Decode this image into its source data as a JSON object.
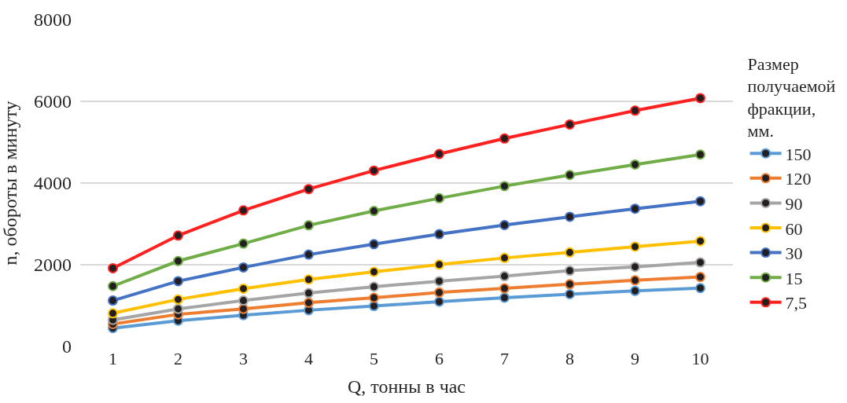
{
  "chart_data": {
    "type": "line",
    "xlabel": "Q, тонны в час",
    "ylabel": "n, обороты в минуту",
    "legend_title": "Размер получаемой фракции, мм.",
    "categories": [
      "1",
      "2",
      "3",
      "4",
      "5",
      "6",
      "7",
      "8",
      "9",
      "10"
    ],
    "ylim": [
      0,
      8000
    ],
    "yticks": [
      0,
      2000,
      4000,
      6000,
      8000
    ],
    "grid": "y",
    "legend": "right",
    "marker": "circle",
    "line_style": "solid",
    "series": [
      {
        "name": "150",
        "color": "#5b9bd5",
        "values": [
          447,
          630,
          765,
          887,
          989,
          1096,
          1192,
          1279,
          1360,
          1428
        ]
      },
      {
        "name": "120",
        "color": "#ed7d31",
        "values": [
          548,
          786,
          920,
          1070,
          1192,
          1320,
          1421,
          1523,
          1618,
          1700
        ]
      },
      {
        "name": "90",
        "color": "#a5a5a5",
        "values": [
          650,
          920,
          1123,
          1306,
          1462,
          1598,
          1720,
          1854,
          1949,
          2057
        ]
      },
      {
        "name": "60",
        "color": "#ffc000",
        "values": [
          812,
          1151,
          1415,
          1639,
          1827,
          2004,
          2166,
          2301,
          2443,
          2579
        ]
      },
      {
        "name": "30",
        "color": "#4472c4",
        "values": [
          1123,
          1598,
          1935,
          2248,
          2504,
          2748,
          2971,
          3174,
          3371,
          3553
        ]
      },
      {
        "name": "15",
        "color": "#70ad47",
        "values": [
          1476,
          2091,
          2518,
          2965,
          3316,
          3628,
          3925,
          4197,
          4453,
          4697
        ]
      },
      {
        "name": "7,5",
        "color": "#ff2020",
        "values": [
          1915,
          2715,
          3330,
          3852,
          4305,
          4711,
          5090,
          5435,
          5773,
          6078
        ]
      }
    ]
  }
}
